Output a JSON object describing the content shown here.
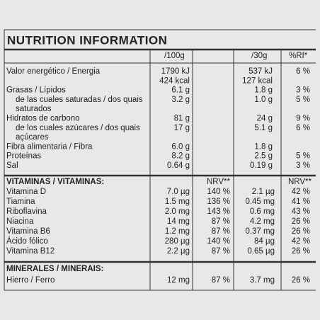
{
  "title": "NUTRITION INFORMATION",
  "header": {
    "per_100g": "/100g",
    "per_30g": "/30g",
    "ri": "%RI*"
  },
  "nutrients": [
    {
      "label": [
        "Valor energético / Energia"
      ],
      "per_100g": [
        "1790 kJ",
        "424 kcal"
      ],
      "per_30g": [
        "537 kJ",
        "127 kcal"
      ],
      "ri": "6 %"
    },
    {
      "label": [
        "Grasas / Lípidos"
      ],
      "per_100g": [
        "6.1 g"
      ],
      "per_30g": [
        "1.8 g"
      ],
      "ri": "3 %"
    },
    {
      "label": [
        "de las cuales saturadas / dos quais",
        "saturados"
      ],
      "per_100g": [
        "3.2 g"
      ],
      "per_30g": [
        "1.0 g"
      ],
      "ri": "5 %"
    },
    {
      "label": [
        "Hidratos de carbono"
      ],
      "per_100g": [
        "81 g"
      ],
      "per_30g": [
        "24 g"
      ],
      "ri": "9 %"
    },
    {
      "label": [
        "de los cuales azúcares / dos quais",
        "açúcares"
      ],
      "per_100g": [
        "17 g"
      ],
      "per_30g": [
        "5.1 g"
      ],
      "ri": "6 %"
    },
    {
      "label": [
        "Fibra alimentaria / Fibra"
      ],
      "per_100g": [
        "6.0 g"
      ],
      "per_30g": [
        "1.8 g"
      ]
    },
    {
      "label": [
        "Proteínas"
      ],
      "per_100g": [
        "8.2 g"
      ],
      "per_30g": [
        "2.5 g"
      ],
      "ri": "5 %"
    },
    {
      "label": [
        "Sal"
      ],
      "per_100g": [
        "0.64 g"
      ],
      "per_30g": [
        "0.19 g"
      ],
      "ri": "3 %"
    }
  ],
  "vitamins": {
    "title": "VITAMINAS / VITAMINAS:",
    "nrv_100g": "NRV**",
    "nrv_30g": "NRV**",
    "rows": [
      {
        "label": "Vitamina D",
        "per_100g": "7.0 µg",
        "nrv_100g": "140 %",
        "per_30g": "2.1 µg",
        "nrv_30g": "42 %"
      },
      {
        "label": "Tiamina",
        "per_100g": "1.5 mg",
        "nrv_100g": "136 %",
        "per_30g": "0.45 mg",
        "nrv_30g": "41 %"
      },
      {
        "label": "Riboflavina",
        "per_100g": "2.0 mg",
        "nrv_100g": "143 %",
        "per_30g": "0.6 mg",
        "nrv_30g": "43 %"
      },
      {
        "label": "Niacina",
        "per_100g": "14 mg",
        "nrv_100g": "87 %",
        "per_30g": "4.2 mg",
        "nrv_30g": "26 %"
      },
      {
        "label": "Vitamina B6",
        "per_100g": "1.2 mg",
        "nrv_100g": "87 %",
        "per_30g": "0.37 mg",
        "nrv_30g": "26 %"
      },
      {
        "label": "Ácido fólico",
        "per_100g": "280 µg",
        "nrv_100g": "140 %",
        "per_30g": "84 µg",
        "nrv_30g": "42 %"
      },
      {
        "label": "Vitamina B12",
        "per_100g": "2.2 µg",
        "nrv_100g": "87 %",
        "per_30g": "0.65 µg",
        "nrv_30g": "26 %"
      }
    ]
  },
  "minerals": {
    "title": "MINERALES / MINERAIS:",
    "rows": [
      {
        "label": "Hierro / Ferro",
        "per_100g": "12 mg",
        "nrv_100g": "87 %",
        "per_30g": "3.7 mg",
        "nrv_30g": "26 %"
      }
    ]
  }
}
